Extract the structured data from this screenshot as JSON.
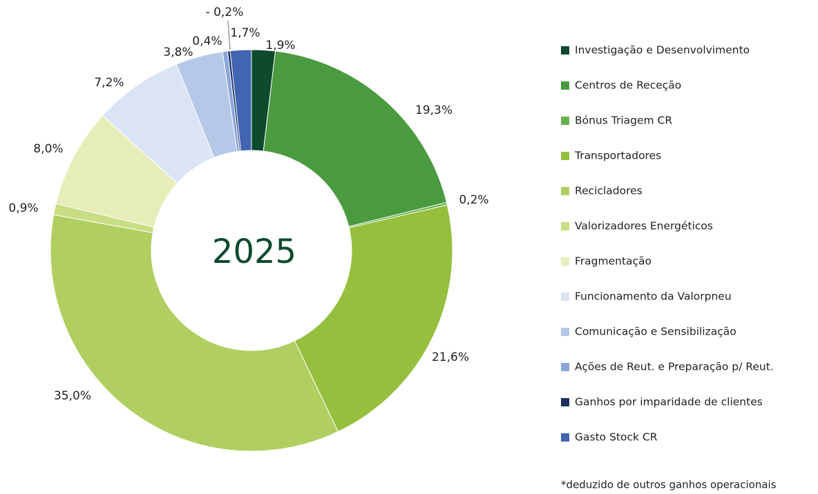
{
  "chart_data": {
    "type": "donut",
    "center_label": "2025",
    "footnote": "*deduzido de outros ganhos operacionais",
    "categories": [
      "Investigação e Desenvolvimento",
      "Centros de Receção",
      "Bónus Triagem CR",
      "Transportadores",
      "Recicladores",
      "Valorizadores Energéticos",
      "Fragmentação",
      "Funcionamento da Valorpneu",
      "Comunicação e Sensibilização",
      "Ações de Reut. e Preparação p/ Reut.",
      "Ganhos por imparidade de clientes",
      "Gasto Stock CR"
    ],
    "values": [
      1.9,
      19.3,
      0.2,
      21.6,
      35.0,
      0.9,
      8.0,
      7.2,
      3.8,
      0.4,
      -0.2,
      1.7
    ],
    "value_labels": [
      "1,9%",
      "19,3%",
      "0,2%",
      "21,6%",
      "35,0%",
      "0,9%",
      "8,0%",
      "7,2%",
      "3,8%",
      "0,4%",
      "- 0,2%",
      "1,7%"
    ],
    "colors": [
      "#0d4a2e",
      "#4a9a3f",
      "#6ab04c",
      "#96bf3d",
      "#b0cf60",
      "#c9dd85",
      "#e6edb8",
      "#dbe4f4",
      "#b5c8e8",
      "#8aa6d8",
      "#1a3060",
      "#4165b0"
    ],
    "legend": "right"
  }
}
